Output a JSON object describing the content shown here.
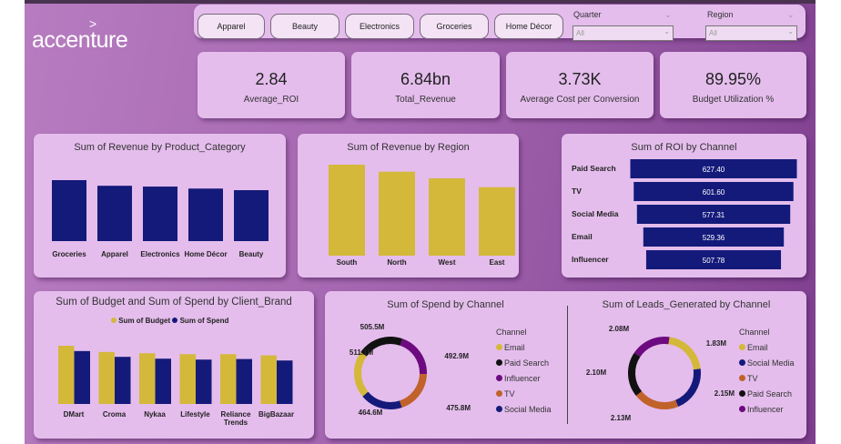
{
  "logo": {
    "text": "accenture",
    "mark": ">"
  },
  "slicer": {
    "buttons": [
      "Apparel",
      "Beauty",
      "Electronics",
      "Groceries",
      "Home Décor"
    ],
    "dropdowns": [
      {
        "label": "Quarter",
        "value": "All"
      },
      {
        "label": "Region",
        "value": "All"
      }
    ]
  },
  "kpis": [
    {
      "value": "2.84",
      "label": "Average_ROI"
    },
    {
      "value": "6.84bn",
      "label": "Total_Revenue"
    },
    {
      "value": "3.73K",
      "label": "Average Cost per Conversion"
    },
    {
      "value": "89.95%",
      "label": "Budget Utilization %"
    }
  ],
  "colors": {
    "navy": "#141a7a",
    "gold": "#d4b83a",
    "black": "#111111",
    "purple": "#6d0a80",
    "orange": "#c0622a",
    "card": "#e4bdec"
  },
  "chart_data": [
    {
      "type": "bar",
      "title": "Sum of Revenue by Product_Category",
      "categories": [
        "Groceries",
        "Apparel",
        "Electronics",
        "Home Décor",
        "Beauty"
      ],
      "values": [
        1.52,
        1.38,
        1.36,
        1.31,
        1.27
      ],
      "unit": "bn (estimated)",
      "color": "#141a7a"
    },
    {
      "type": "bar",
      "title": "Sum of Revenue by Region",
      "categories": [
        "South",
        "North",
        "West",
        "East"
      ],
      "values": [
        1.94,
        1.79,
        1.65,
        1.46
      ],
      "unit": "bn (estimated)",
      "color": "#d4b83a"
    },
    {
      "type": "bar",
      "orientation": "horizontal-funnel",
      "title": "Sum of ROI by Channel",
      "categories": [
        "Paid Search",
        "TV",
        "Social Media",
        "Email",
        "Influencer"
      ],
      "values": [
        627.4,
        601.6,
        577.31,
        529.36,
        507.78
      ],
      "labels": [
        "627.40",
        "601.60",
        "577.31",
        "529.36",
        "507.78"
      ],
      "color": "#141a7a"
    },
    {
      "type": "bar",
      "title": "Sum of Budget and Sum of Spend by Client_Brand",
      "categories": [
        "DMart",
        "Croma",
        "Nykaa",
        "Lifestyle",
        "Reliance Trends",
        "BigBazaar"
      ],
      "legend": "top",
      "series": [
        {
          "name": "Sum of Budget",
          "color": "#d4b83a",
          "values": [
            513,
            458,
            447,
            439,
            439,
            428
          ]
        },
        {
          "name": "Sum of Spend",
          "color": "#141a7a",
          "values": [
            466,
            415,
            399,
            391,
            396,
            383
          ]
        }
      ],
      "unit": "M (estimated)"
    },
    {
      "type": "pie",
      "donut": true,
      "title": "Sum of Spend by Channel",
      "legend_title": "Channel",
      "slices": [
        {
          "name": "Email",
          "value": 511.1,
          "label": "511.1M",
          "color": "#d4b83a"
        },
        {
          "name": "Paid Search",
          "value": 505.5,
          "label": "505.5M",
          "color": "#111111"
        },
        {
          "name": "Influencer",
          "value": 492.9,
          "label": "492.9M",
          "color": "#6d0a80"
        },
        {
          "name": "TV",
          "value": 475.8,
          "label": "475.8M",
          "color": "#c0622a"
        },
        {
          "name": "Social Media",
          "value": 464.6,
          "label": "464.6M",
          "color": "#141a7a"
        }
      ]
    },
    {
      "type": "pie",
      "donut": true,
      "title": "Sum of Leads_Generated by Channel",
      "legend_title": "Channel",
      "slices": [
        {
          "name": "Email",
          "value": 2.15,
          "label": "2.15M",
          "color": "#d4b83a"
        },
        {
          "name": "Social Media",
          "value": 2.13,
          "label": "2.13M",
          "color": "#141a7a"
        },
        {
          "name": "TV",
          "value": 2.1,
          "label": "2.10M",
          "color": "#c0622a"
        },
        {
          "name": "Paid Search",
          "value": 2.08,
          "label": "2.08M",
          "color": "#111111"
        },
        {
          "name": "Influencer",
          "value": 1.83,
          "label": "1.83M",
          "color": "#6d0a80"
        }
      ]
    }
  ]
}
